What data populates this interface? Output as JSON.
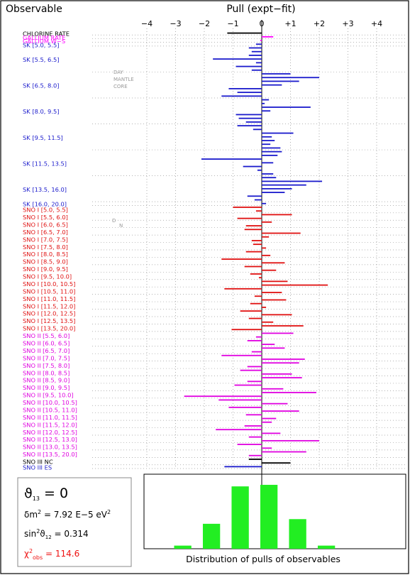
{
  "colors": {
    "frame": "#000000",
    "dotted_line": "#9a9a9a",
    "chlorine": "#000000",
    "gallium": "#ff00ff",
    "sk": "#1a1acc",
    "sno1": "#e01010",
    "sno2": "#e000e0",
    "sno3_nc": "#000000",
    "sno3_es": "#1a1acc",
    "hist": "#22ee22",
    "chi": "#ee1111",
    "axis_label": "#1a1acc"
  },
  "header": {
    "left_title": "Observable",
    "center_title": "Pull (expt−fit)"
  },
  "annotations": {
    "day": "DAY",
    "mantle": "MANTLE",
    "core": "CORE",
    "day_short": "D",
    "night_short": "N"
  },
  "params_box": {
    "theta": "ϑ",
    "theta_sub": "13",
    "theta_eq": " = 0",
    "dm_prefix": "δm",
    "dm_sup": "2",
    "dm_text": " = 7.92 E−5 eV",
    "dm_unit_sup": "2",
    "sin_prefix": "sin",
    "sin_sup": "2",
    "sin_theta": "ϑ",
    "sin_sub": "12",
    "sin_text": " = 0.314",
    "chi_prefix": "χ",
    "chi_sup": "2",
    "chi_sub": "obs",
    "chi_text": " = 114.6"
  },
  "chart_data": [
    {
      "type": "bar",
      "orientation": "horizontal",
      "title": "Pull (expt−fit)",
      "xlim": [
        -4,
        4
      ],
      "xticks": [
        "−4",
        "−3",
        "−2",
        "−1",
        "0",
        "+1",
        "+2",
        "+3",
        "+4"
      ],
      "xtick_values": [
        -4,
        -3,
        -2,
        -1,
        0,
        1,
        2,
        3,
        4
      ],
      "groups": [
        {
          "label": "CHLORINE RATE",
          "color_key": "chlorine",
          "values": [
            -1.2
          ]
        },
        {
          "label": "GALLIUM RATE",
          "color_key": "gallium",
          "values": [
            0.4
          ]
        },
        {
          "label": "GALLIUM  W−S",
          "color_key": "gallium",
          "values": [
            -0.05
          ]
        },
        {
          "label": "SK [5.0, 5.5]",
          "color_key": "sk",
          "values": [
            -0.2
          ]
        },
        {
          "label": "SK [5.5, 6.5]",
          "color_key": "sk",
          "values": [
            -0.45,
            -0.35,
            -0.45,
            -1.7,
            -0.2,
            -0.9,
            -0.35
          ]
        },
        {
          "label": "SK [6.5, 8.0]",
          "color_key": "sk",
          "values": [
            1.0,
            2.0,
            1.3,
            0.7,
            -1.15,
            -0.85,
            -1.4
          ]
        },
        {
          "label": "SK [8.0, 9.5]",
          "color_key": "sk",
          "values": [
            0.25,
            0.1,
            1.7,
            0.3,
            -0.9,
            -0.8,
            -0.55
          ]
        },
        {
          "label": "SK [9.5, 11.5]",
          "color_key": "sk",
          "values": [
            -0.85,
            -0.3,
            1.1,
            0.35,
            0.45,
            0.3,
            0.65
          ]
        },
        {
          "label": "SK [11.5, 13.5]",
          "color_key": "sk",
          "values": [
            0.7,
            0.55,
            -2.1,
            0.4,
            -0.65,
            -0.15,
            0.4
          ]
        },
        {
          "label": "SK [13.5, 16.0]",
          "color_key": "sk",
          "values": [
            0.5,
            2.1,
            1.55,
            1.05,
            0.8,
            -0.5,
            -0.25
          ]
        },
        {
          "label": "SK [16.0, 20.0]",
          "color_key": "sk",
          "values": [
            0.15
          ]
        },
        {
          "label": "SNO I [5.0, 5.5]",
          "color_key": "sno1",
          "values": [
            -1.0,
            -0.2
          ]
        },
        {
          "label": "SNO I [5.5, 6.0]",
          "color_key": "sno1",
          "values": [
            1.05,
            -0.85
          ]
        },
        {
          "label": "SNO I [6.0, 6.5]",
          "color_key": "sno1",
          "values": [
            0.35,
            -0.55
          ]
        },
        {
          "label": "SNO I [6.5, 7.0]",
          "color_key": "sno1",
          "values": [
            -0.6,
            1.35
          ]
        },
        {
          "label": "SNO I [7.0, 7.5]",
          "color_key": "sno1",
          "values": [
            0.25,
            -0.35
          ]
        },
        {
          "label": "SNO I [7.5, 8.0]",
          "color_key": "sno1",
          "values": [
            -0.3,
            0.15
          ]
        },
        {
          "label": "SNO I [8.0, 8.5]",
          "color_key": "sno1",
          "values": [
            -0.55,
            0.3
          ]
        },
        {
          "label": "SNO I [8.5, 9.0]",
          "color_key": "sno1",
          "values": [
            -1.4,
            0.8
          ]
        },
        {
          "label": "SNO I [9.0, 9.5]",
          "color_key": "sno1",
          "values": [
            -0.6,
            0.5
          ]
        },
        {
          "label": "SNO I [9.5, 10.0]",
          "color_key": "sno1",
          "values": [
            -0.4,
            -0.1
          ]
        },
        {
          "label": "SNO I [10.0, 10.5]",
          "color_key": "sno1",
          "values": [
            0.9,
            2.3
          ]
        },
        {
          "label": "SNO I [10.5, 11.0]",
          "color_key": "sno1",
          "values": [
            -1.3,
            0.7
          ]
        },
        {
          "label": "SNO I [11.0, 11.5]",
          "color_key": "sno1",
          "values": [
            -0.25,
            0.85
          ]
        },
        {
          "label": "SNO I [11.5, 12.0]",
          "color_key": "sno1",
          "values": [
            -0.4,
            0.15
          ]
        },
        {
          "label": "SNO I [12.0, 12.5]",
          "color_key": "sno1",
          "values": [
            -0.75,
            1.05
          ]
        },
        {
          "label": "SNO I [12.5, 13.5]",
          "color_key": "sno1",
          "values": [
            -0.45,
            0.4
          ]
        },
        {
          "label": "SNO I [13.5, 20.0]",
          "color_key": "sno1",
          "values": [
            1.45,
            -1.05
          ]
        },
        {
          "label": "SNO II [5.5, 6.0]",
          "color_key": "sno2",
          "values": [
            1.1,
            -0.2
          ]
        },
        {
          "label": "SNO II [6.0, 6.5]",
          "color_key": "sno2",
          "values": [
            -0.5,
            0.45
          ]
        },
        {
          "label": "SNO II [6.5, 7.0]",
          "color_key": "sno2",
          "values": [
            0.8,
            -0.35
          ]
        },
        {
          "label": "SNO II [7.0, 7.5]",
          "color_key": "sno2",
          "values": [
            -1.4,
            1.5
          ]
        },
        {
          "label": "SNO II [7.5, 8.0]",
          "color_key": "sno2",
          "values": [
            1.3,
            -0.5
          ]
        },
        {
          "label": "SNO II [8.0, 8.5]",
          "color_key": "sno2",
          "values": [
            -0.75,
            1.05
          ]
        },
        {
          "label": "SNO II [8.5, 9.0]",
          "color_key": "sno2",
          "values": [
            1.4,
            -0.5
          ]
        },
        {
          "label": "SNO II [9.0, 9.5]",
          "color_key": "sno2",
          "values": [
            -0.95,
            0.75
          ]
        },
        {
          "label": "SNO II [9.5, 10.0]",
          "color_key": "sno2",
          "values": [
            1.9,
            -2.7
          ]
        },
        {
          "label": "SNO II [10.0, 10.5]",
          "color_key": "sno2",
          "values": [
            -1.5,
            0.9
          ]
        },
        {
          "label": "SNO II [10.5, 11.0]",
          "color_key": "sno2",
          "values": [
            -1.15,
            1.3
          ]
        },
        {
          "label": "SNO II [11.0, 11.5]",
          "color_key": "sno2",
          "values": [
            -0.55,
            0.5
          ]
        },
        {
          "label": "SNO II [11.5, 12.0]",
          "color_key": "sno2",
          "values": [
            0.35,
            -0.6
          ]
        },
        {
          "label": "SNO II [12.0, 12.5]",
          "color_key": "sno2",
          "values": [
            -1.6,
            0.65
          ]
        },
        {
          "label": "SNO II [12.5, 13.0]",
          "color_key": "sno2",
          "values": [
            -0.45,
            2.0
          ]
        },
        {
          "label": "SNO II [13.0, 13.5]",
          "color_key": "sno2",
          "values": [
            -0.85,
            0.35
          ]
        },
        {
          "label": "SNO II [13.5, 20.0]",
          "color_key": "sno2",
          "values": [
            1.55,
            -0.45
          ]
        },
        {
          "label": "SNO III NC",
          "color_key": "sno3_nc",
          "values": [
            -0.45,
            1.0
          ]
        },
        {
          "label": "SNO III ES",
          "color_key": "sno3_es",
          "values": [
            -1.3
          ]
        }
      ]
    },
    {
      "type": "bar",
      "title": "Distribution of pulls of observables",
      "xlim": [
        -4,
        4
      ],
      "bin_centers": [
        -2.75,
        -1.75,
        -0.75,
        0.25,
        1.25,
        2.25
      ],
      "bin_width": 0.6,
      "counts": [
        1,
        8,
        20,
        20.5,
        9.5,
        1
      ],
      "ylim": [
        0,
        23
      ]
    }
  ]
}
